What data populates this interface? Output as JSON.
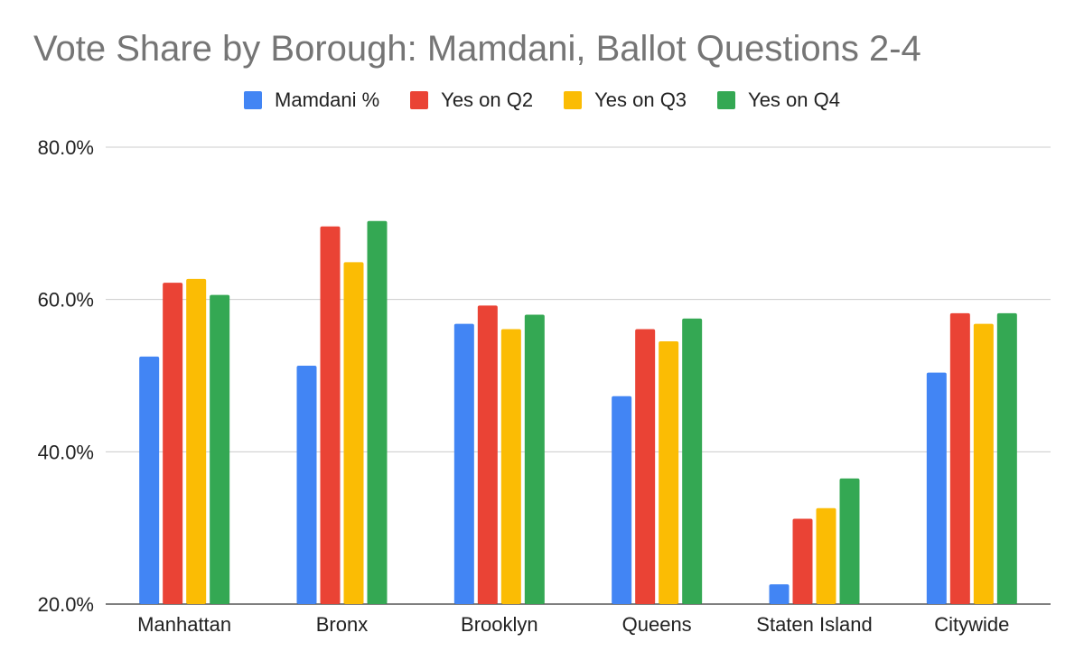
{
  "chart_data": {
    "type": "bar",
    "title": "Vote Share by Borough: Mamdani, Ballot Questions 2-4",
    "categories": [
      "Manhattan",
      "Bronx",
      "Brooklyn",
      "Queens",
      "Staten Island",
      "Citywide"
    ],
    "series": [
      {
        "name": "Mamdani %",
        "color": "#4285F4",
        "values": [
          52.5,
          51.3,
          56.8,
          47.3,
          22.6,
          50.4
        ]
      },
      {
        "name": "Yes on Q2",
        "color": "#EA4335",
        "values": [
          62.2,
          69.6,
          59.2,
          56.1,
          31.2,
          58.2
        ]
      },
      {
        "name": "Yes on Q3",
        "color": "#FBBC04",
        "values": [
          62.7,
          64.9,
          56.1,
          54.5,
          32.6,
          56.8
        ]
      },
      {
        "name": "Yes on Q4",
        "color": "#34A853",
        "values": [
          60.6,
          70.3,
          58.0,
          57.5,
          36.5,
          58.2
        ]
      }
    ],
    "yticks": [
      20,
      40,
      60,
      80
    ],
    "ytick_labels": [
      "20.0%",
      "40.0%",
      "60.0%",
      "80.0%"
    ],
    "ylim": [
      20,
      80
    ],
    "grid": true,
    "legend_position": "top"
  }
}
